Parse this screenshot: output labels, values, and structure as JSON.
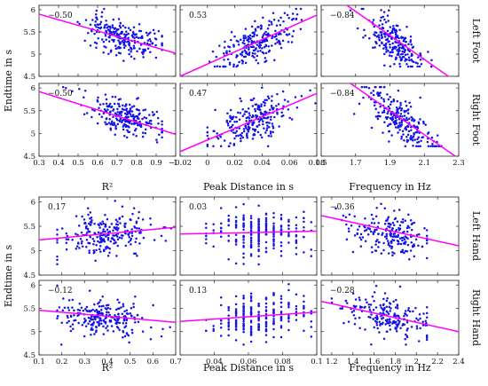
{
  "chart_data": {
    "type": "scatter",
    "y_label": "Endtime in s",
    "groups": [
      {
        "x_labels": [
          "R²",
          "Peak Distance in s",
          "Frequency in Hz"
        ],
        "x_ranges": [
          [
            0.3,
            1.0
          ],
          [
            -0.02,
            0.08
          ],
          [
            1.5,
            2.3
          ]
        ],
        "x_ticks": [
          [
            0.3,
            0.4,
            0.5,
            0.6,
            0.7,
            0.8,
            0.9,
            1
          ],
          [
            -0.02,
            0,
            0.02,
            0.04,
            0.06,
            0.08
          ],
          [
            1.5,
            1.7,
            1.9,
            2.1,
            2.3
          ]
        ],
        "x_tick_labels": [
          [
            "0.3",
            "0.4",
            "0.5",
            "0.6",
            "0.7",
            "0.8",
            "0.9",
            "1"
          ],
          [
            "−0.02",
            "0",
            "0.02",
            "0.04",
            "0.06",
            "0.08"
          ],
          [
            "1.5",
            "1.7",
            "1.9",
            "2.1",
            "2.3"
          ]
        ],
        "y_range": [
          4.5,
          6.1
        ],
        "y_ticks": [
          4.5,
          5,
          5.5,
          6
        ],
        "y_tick_labels": [
          "4.5",
          "5",
          "5.5",
          "6"
        ],
        "rows": [
          {
            "label": "Left Foot",
            "panels": [
              {
                "r": "−0.50",
                "fit": [
                  [
                    0.3,
                    5.9
                  ],
                  [
                    1.0,
                    5.02
                  ]
                ],
                "cloud": {
                  "xc": 0.78,
                  "xs": 0.13,
                  "yc": 5.35,
                  "ys": 0.25,
                  "n": 230,
                  "xmin": 0.32,
                  "xmax": 0.93,
                  "skew": -1.5,
                  "seed": 11
                }
              },
              {
                "r": "0.53",
                "fit": [
                  [
                    -0.02,
                    4.5
                  ],
                  [
                    0.08,
                    5.88
                  ]
                ],
                "cloud": {
                  "xc": 0.036,
                  "xs": 0.014,
                  "yc": 5.25,
                  "ys": 0.28,
                  "n": 230,
                  "xmin": 0.0,
                  "xmax": 0.075,
                  "skew": 0,
                  "seed": 12
                }
              },
              {
                "r": "−0.84",
                "fit": [
                  [
                    1.65,
                    6.1
                  ],
                  [
                    2.24,
                    4.5
                  ]
                ],
                "cloud": {
                  "xc": 1.91,
                  "xs": 0.09,
                  "yc": 5.2,
                  "ys": 0.32,
                  "n": 230,
                  "xmin": 1.67,
                  "xmax": 2.15,
                  "skew": 0,
                  "seed": 13
                }
              }
            ]
          },
          {
            "label": "Right Foot",
            "panels": [
              {
                "r": "−0.50",
                "fit": [
                  [
                    0.3,
                    5.92
                  ],
                  [
                    1.0,
                    4.98
                  ]
                ],
                "cloud": {
                  "xc": 0.8,
                  "xs": 0.13,
                  "yc": 5.3,
                  "ys": 0.26,
                  "n": 230,
                  "xmin": 0.32,
                  "xmax": 0.93,
                  "skew": -1.5,
                  "seed": 21
                }
              },
              {
                "r": "0.47",
                "fit": [
                  [
                    -0.02,
                    4.6
                  ],
                  [
                    0.08,
                    5.88
                  ]
                ],
                "cloud": {
                  "xc": 0.032,
                  "xs": 0.015,
                  "yc": 5.28,
                  "ys": 0.3,
                  "n": 230,
                  "xmin": 0.0,
                  "xmax": 0.08,
                  "skew": 0,
                  "seed": 22
                }
              },
              {
                "r": "−0.84",
                "fit": [
                  [
                    1.67,
                    6.1
                  ],
                  [
                    2.28,
                    4.5
                  ]
                ],
                "cloud": {
                  "xc": 1.95,
                  "xs": 0.1,
                  "yc": 5.25,
                  "ys": 0.33,
                  "n": 230,
                  "xmin": 1.68,
                  "xmax": 2.2,
                  "skew": 0,
                  "seed": 23
                }
              }
            ]
          }
        ]
      },
      {
        "x_labels": [
          "R²",
          "Peak Distance in s",
          "Frequency in Hz"
        ],
        "x_ranges": [
          [
            0.1,
            0.7
          ],
          [
            0.02,
            0.1
          ],
          [
            1.1,
            2.4
          ]
        ],
        "x_ticks": [
          [
            0.1,
            0.2,
            0.3,
            0.4,
            0.5,
            0.6,
            0.7
          ],
          [
            0.04,
            0.06,
            0.08,
            0.1
          ],
          [
            1.2,
            1.4,
            1.6,
            1.8,
            2.0,
            2.2,
            2.4
          ]
        ],
        "x_tick_labels": [
          [
            "0.1",
            "0.2",
            "0.3",
            "0.4",
            "0.5",
            "0.6",
            "0.7"
          ],
          [
            "0.04",
            "0.06",
            "0.08",
            "0.1"
          ],
          [
            "1.2",
            "1.4",
            "1.6",
            "1.8",
            "2",
            "2.2",
            "2.4"
          ]
        ],
        "y_range": [
          4.5,
          6.1
        ],
        "y_ticks": [
          4.5,
          5,
          5.5,
          6
        ],
        "y_tick_labels": [
          "4.5",
          "5",
          "5.5",
          "6"
        ],
        "rows": [
          {
            "label": "Left Hand",
            "panels": [
              {
                "r": "0.17",
                "fit": [
                  [
                    0.1,
                    5.22
                  ],
                  [
                    0.7,
                    5.48
                  ]
                ],
                "cloud": {
                  "xc": 0.4,
                  "xs": 0.1,
                  "yc": 5.35,
                  "ys": 0.3,
                  "n": 230,
                  "xmin": 0.18,
                  "xmax": 0.68,
                  "skew": 0,
                  "seed": 31
                }
              },
              {
                "r": "0.03",
                "fit": [
                  [
                    0.02,
                    5.34
                  ],
                  [
                    0.1,
                    5.4
                  ]
                ],
                "cloud": {
                  "xc": 0.066,
                  "xs": 0.014,
                  "yc": 5.4,
                  "ys": 0.3,
                  "n": 230,
                  "xmin": 0.036,
                  "xmax": 0.095,
                  "skew": 0,
                  "seed": 32,
                  "xgrid": 0.0044
                }
              },
              {
                "r": "−0.36",
                "fit": [
                  [
                    1.1,
                    5.72
                  ],
                  [
                    2.4,
                    5.1
                  ]
                ],
                "cloud": {
                  "xc": 1.75,
                  "xs": 0.2,
                  "yc": 5.25,
                  "ys": 0.3,
                  "n": 200,
                  "xmin": 1.15,
                  "xmax": 2.1,
                  "skew": 0,
                  "seed": 33
                }
              }
            ]
          },
          {
            "label": "Right Hand",
            "panels": [
              {
                "r": "−0.12",
                "fit": [
                  [
                    0.1,
                    5.46
                  ],
                  [
                    0.7,
                    5.2
                  ]
                ],
                "cloud": {
                  "xc": 0.38,
                  "xs": 0.09,
                  "yc": 5.3,
                  "ys": 0.28,
                  "n": 230,
                  "xmin": 0.18,
                  "xmax": 0.68,
                  "skew": 0,
                  "seed": 41
                }
              },
              {
                "r": "0.13",
                "fit": [
                  [
                    0.02,
                    5.22
                  ],
                  [
                    0.1,
                    5.42
                  ]
                ],
                "cloud": {
                  "xc": 0.066,
                  "xs": 0.014,
                  "yc": 5.35,
                  "ys": 0.3,
                  "n": 230,
                  "xmin": 0.036,
                  "xmax": 0.095,
                  "skew": 0,
                  "seed": 42,
                  "xgrid": 0.0044
                }
              },
              {
                "r": "−0.28",
                "fit": [
                  [
                    1.1,
                    5.65
                  ],
                  [
                    2.4,
                    5.0
                  ]
                ],
                "cloud": {
                  "xc": 1.72,
                  "xs": 0.2,
                  "yc": 5.25,
                  "ys": 0.3,
                  "n": 200,
                  "xmin": 1.2,
                  "xmax": 2.1,
                  "skew": 0,
                  "seed": 43
                }
              }
            ]
          }
        ]
      }
    ],
    "colors": {
      "points": "#1414e6",
      "fit": "#ff00ff"
    }
  }
}
